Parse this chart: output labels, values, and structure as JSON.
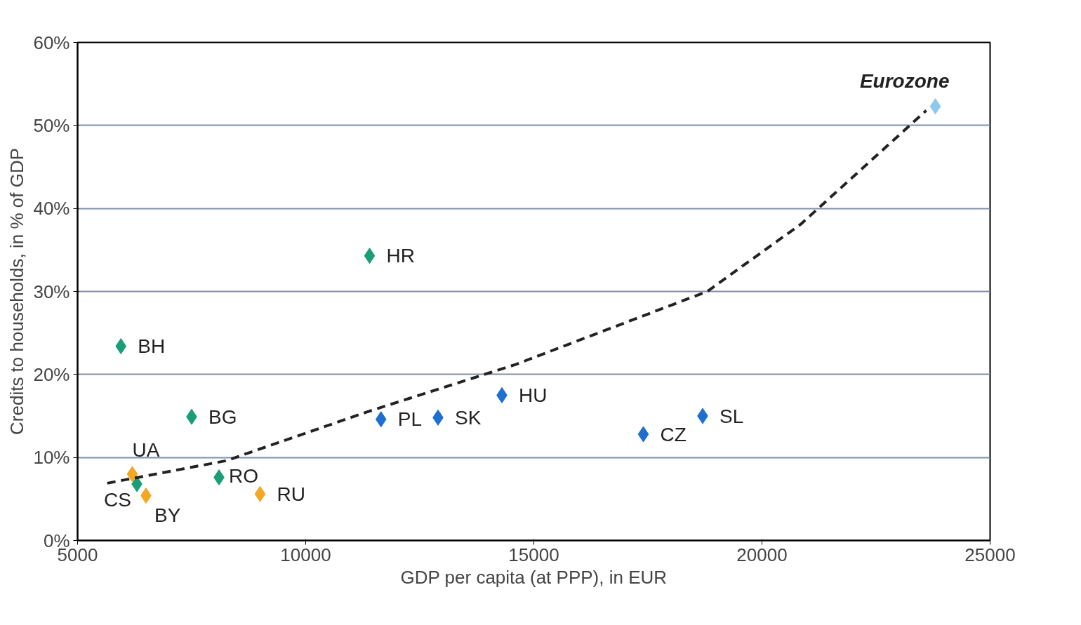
{
  "chart_data": {
    "type": "scatter",
    "xlabel": "GDP per capita (at PPP), in EUR",
    "ylabel": "Credits to households, in % of GDP",
    "xlim": [
      5000,
      25000
    ],
    "xticks": [
      5000,
      10000,
      15000,
      20000,
      25000
    ],
    "ylim": [
      0,
      60
    ],
    "yticks": [
      {
        "value": 0,
        "label": "0%"
      },
      {
        "value": 10,
        "label": "10%"
      },
      {
        "value": 20,
        "label": "20%"
      },
      {
        "value": 30,
        "label": "30%"
      },
      {
        "value": 40,
        "label": "40%"
      },
      {
        "value": 50,
        "label": "50%"
      },
      {
        "value": 60,
        "label": "60%"
      }
    ],
    "grid": "y",
    "marker": "diamond",
    "series": [
      {
        "color": "#1a9e77",
        "x": [
          5950,
          11400,
          7500,
          8100,
          6300
        ],
        "values": [
          23.4,
          34.3,
          14.9,
          7.6,
          6.8
        ]
      },
      {
        "color": "#f5a623",
        "x": [
          6200,
          6500,
          9000
        ],
        "values": [
          8.0,
          5.4,
          5.6
        ]
      },
      {
        "color": "#1f6fd0",
        "x": [
          11650,
          12900,
          14300,
          17400,
          18700
        ],
        "values": [
          14.6,
          14.8,
          17.5,
          12.8,
          15.0
        ]
      },
      {
        "color": "#8ec8f0",
        "x": [
          23800
        ],
        "values": [
          52.3
        ]
      },
      {
        "type": "line",
        "color": "#222222",
        "line_style": "dashed",
        "marker": "none",
        "x": [
          5650,
          8250,
          11350,
          14600,
          18800,
          20850,
          23600
        ],
        "values": [
          6.9,
          9.6,
          15.5,
          21.2,
          30.0,
          38.1,
          51.8
        ]
      }
    ],
    "annotations": [
      {
        "text": "BH",
        "x": 5950,
        "y": 23.4
      },
      {
        "text": "HR",
        "x": 11400,
        "y": 34.3
      },
      {
        "text": "BG",
        "x": 7500,
        "y": 14.9
      },
      {
        "text": "RO",
        "x": 8100,
        "y": 7.6
      },
      {
        "text": "CS",
        "x": 6300,
        "y": 6.8
      },
      {
        "text": "UA",
        "x": 6200,
        "y": 8.0
      },
      {
        "text": "BY",
        "x": 6500,
        "y": 5.4
      },
      {
        "text": "RU",
        "x": 9000,
        "y": 5.6
      },
      {
        "text": "PL",
        "x": 11650,
        "y": 14.6
      },
      {
        "text": "SK",
        "x": 12900,
        "y": 14.8
      },
      {
        "text": "HU",
        "x": 14300,
        "y": 17.5
      },
      {
        "text": "CZ",
        "x": 17400,
        "y": 12.8
      },
      {
        "text": "SL",
        "x": 18700,
        "y": 15.0
      },
      {
        "text": "Eurozone",
        "x": 23800,
        "y": 52.3
      }
    ]
  }
}
